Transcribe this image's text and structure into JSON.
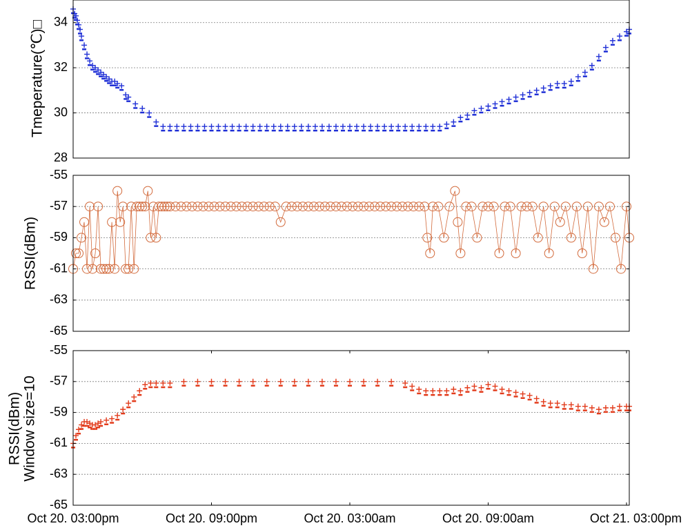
{
  "chart_data": [
    {
      "type": "scatter",
      "ylabel": "Tmeperature(℃)□",
      "ylim": [
        28,
        35
      ],
      "yticks": [
        "28",
        "30",
        "32",
        "34"
      ],
      "grid": true,
      "color": "#1f2fd6",
      "marker": "plus",
      "series": [
        {
          "x": [
            0,
            0.01,
            0.02,
            0.03,
            0.04,
            0.05,
            0.06,
            0.08,
            0.1,
            0.12,
            0.14,
            0.16,
            0.18,
            0.2,
            0.22,
            0.24,
            0.26,
            0.28,
            0.3,
            0.32,
            0.35,
            0.38,
            0.4,
            0.45,
            0.5,
            0.55,
            0.6,
            0.65,
            0.7,
            0.75,
            0.8,
            0.85,
            0.9,
            0.95,
            1.0,
            1.05,
            1.1,
            1.15,
            1.2,
            1.25,
            1.3,
            1.35,
            1.4,
            1.45,
            1.5,
            1.55,
            1.6,
            1.65,
            1.7,
            1.75,
            1.8,
            1.85,
            1.9,
            1.95,
            2.0,
            2.05,
            2.1,
            2.15,
            2.2,
            2.25,
            2.3,
            2.35,
            2.4,
            2.45,
            2.5,
            2.55,
            2.6,
            2.65,
            2.7,
            2.75,
            2.8,
            2.85,
            2.9,
            2.95,
            3.0,
            3.05,
            3.1,
            3.15,
            3.2,
            3.25,
            3.3,
            3.35,
            3.4,
            3.45,
            3.5,
            3.55,
            3.6,
            3.65,
            3.7,
            3.75,
            3.8,
            3.85,
            3.9,
            3.95,
            4.0,
            4.02
          ],
          "y": [
            34.6,
            34.4,
            34.3,
            34.1,
            33.9,
            33.7,
            33.4,
            33.0,
            32.6,
            32.3,
            32.1,
            32.0,
            31.9,
            31.8,
            31.7,
            31.6,
            31.5,
            31.4,
            31.4,
            31.3,
            31.2,
            30.8,
            30.7,
            30.4,
            30.2,
            30.0,
            29.6,
            29.4,
            29.4,
            29.4,
            29.4,
            29.4,
            29.4,
            29.4,
            29.4,
            29.4,
            29.4,
            29.4,
            29.4,
            29.4,
            29.4,
            29.4,
            29.4,
            29.4,
            29.4,
            29.4,
            29.4,
            29.4,
            29.4,
            29.4,
            29.4,
            29.4,
            29.4,
            29.4,
            29.4,
            29.4,
            29.4,
            29.4,
            29.4,
            29.4,
            29.4,
            29.4,
            29.4,
            29.4,
            29.4,
            29.4,
            29.4,
            29.4,
            29.5,
            29.6,
            29.8,
            29.9,
            30.1,
            30.2,
            30.3,
            30.4,
            30.5,
            30.6,
            30.7,
            30.8,
            30.9,
            31.0,
            31.1,
            31.2,
            31.3,
            31.3,
            31.4,
            31.6,
            31.8,
            32.1,
            32.5,
            32.9,
            33.2,
            33.4,
            33.6,
            33.7
          ]
        }
      ]
    },
    {
      "type": "line",
      "ylabel": "RSSI(dBm)",
      "ylim": [
        -65,
        -55
      ],
      "yticks": [
        "-65",
        "-63",
        "-61",
        "-59",
        "-57",
        "-55"
      ],
      "grid": true,
      "color": "#d2693a",
      "marker": "circle",
      "series": [
        {
          "x": [
            0.0,
            0.02,
            0.04,
            0.06,
            0.08,
            0.1,
            0.12,
            0.14,
            0.16,
            0.18,
            0.2,
            0.22,
            0.24,
            0.26,
            0.28,
            0.3,
            0.32,
            0.34,
            0.36,
            0.38,
            0.4,
            0.42,
            0.44,
            0.46,
            0.48,
            0.5,
            0.52,
            0.54,
            0.56,
            0.58,
            0.6,
            0.62,
            0.64,
            0.66,
            0.68,
            0.7,
            0.74,
            0.78,
            0.82,
            0.86,
            0.9,
            0.94,
            0.98,
            1.02,
            1.06,
            1.1,
            1.14,
            1.18,
            1.22,
            1.26,
            1.3,
            1.34,
            1.38,
            1.42,
            1.46,
            1.5,
            1.54,
            1.58,
            1.62,
            1.66,
            1.7,
            1.74,
            1.78,
            1.82,
            1.86,
            1.9,
            1.94,
            1.98,
            2.02,
            2.06,
            2.1,
            2.14,
            2.18,
            2.22,
            2.26,
            2.3,
            2.34,
            2.38,
            2.42,
            2.46,
            2.5,
            2.54,
            2.56,
            2.58,
            2.6,
            2.64,
            2.68,
            2.72,
            2.76,
            2.78,
            2.8,
            2.84,
            2.88,
            2.92,
            2.96,
            3.0,
            3.04,
            3.08,
            3.12,
            3.16,
            3.2,
            3.24,
            3.28,
            3.32,
            3.36,
            3.4,
            3.44,
            3.48,
            3.52,
            3.56,
            3.6,
            3.64,
            3.68,
            3.72,
            3.76,
            3.8,
            3.84,
            3.88,
            3.92,
            3.96,
            4.0,
            4.02
          ],
          "y": [
            -61,
            -60,
            -60,
            -59,
            -58,
            -61,
            -57,
            -61,
            -60,
            -57,
            -61,
            -61,
            -61,
            -61,
            -58,
            -61,
            -56,
            -58,
            -57,
            -61,
            -61,
            -57,
            -61,
            -57,
            -57,
            -57,
            -57,
            -56,
            -59,
            -57,
            -59,
            -57,
            -57,
            -57,
            -57,
            -57,
            -57,
            -57,
            -57,
            -57,
            -57,
            -57,
            -57,
            -57,
            -57,
            -57,
            -57,
            -57,
            -57,
            -57,
            -57,
            -57,
            -57,
            -57,
            -57,
            -58,
            -57,
            -57,
            -57,
            -57,
            -57,
            -57,
            -57,
            -57,
            -57,
            -57,
            -57,
            -57,
            -57,
            -57,
            -57,
            -57,
            -57,
            -57,
            -57,
            -57,
            -57,
            -57,
            -57,
            -57,
            -57,
            -57,
            -59,
            -60,
            -57,
            -57,
            -59,
            -57,
            -56,
            -58,
            -60,
            -57,
            -57,
            -59,
            -57,
            -57,
            -57,
            -60,
            -57,
            -57,
            -60,
            -57,
            -57,
            -57,
            -59,
            -57,
            -60,
            -57,
            -58,
            -57,
            -59,
            -57,
            -60,
            -57,
            -61,
            -57,
            -58,
            -57,
            -59,
            -61,
            -57,
            -59
          ]
        }
      ]
    },
    {
      "type": "scatter",
      "ylabel": "RSSI(dBm)",
      "ylabel2": "Window size=10",
      "ylim": [
        -65,
        -55
      ],
      "yticks": [
        "-65",
        "-63",
        "-61",
        "-59",
        "-57",
        "-55"
      ],
      "xticks": [
        "Oct 20. 03:00pm",
        "Oct 20. 09:00pm",
        "Oct 20. 03:00am",
        "Oct 20. 09:00am",
        "Oct 21. 03:00pm"
      ],
      "grid": true,
      "color": "#e23a1a",
      "marker": "plus",
      "series": [
        {
          "x": [
            0.0,
            0.02,
            0.04,
            0.06,
            0.08,
            0.1,
            0.12,
            0.14,
            0.16,
            0.18,
            0.2,
            0.24,
            0.28,
            0.32,
            0.36,
            0.4,
            0.44,
            0.48,
            0.52,
            0.56,
            0.6,
            0.65,
            0.7,
            0.8,
            0.9,
            1.0,
            1.1,
            1.2,
            1.3,
            1.4,
            1.5,
            1.6,
            1.7,
            1.8,
            1.9,
            2.0,
            2.1,
            2.2,
            2.3,
            2.4,
            2.45,
            2.5,
            2.55,
            2.6,
            2.65,
            2.7,
            2.75,
            2.8,
            2.85,
            2.9,
            2.95,
            3.0,
            3.05,
            3.1,
            3.15,
            3.2,
            3.25,
            3.3,
            3.35,
            3.4,
            3.45,
            3.5,
            3.55,
            3.6,
            3.65,
            3.7,
            3.75,
            3.8,
            3.85,
            3.9,
            3.95,
            4.0,
            4.02
          ],
          "y": [
            -61.0,
            -60.5,
            -60.1,
            -59.8,
            -59.6,
            -59.6,
            -59.7,
            -59.8,
            -59.8,
            -59.7,
            -59.6,
            -59.5,
            -59.4,
            -59.2,
            -58.8,
            -58.4,
            -58.0,
            -57.6,
            -57.2,
            -57.1,
            -57.1,
            -57.1,
            -57.1,
            -57.0,
            -57.0,
            -57.0,
            -57.0,
            -57.0,
            -57.0,
            -57.0,
            -57.0,
            -57.0,
            -57.0,
            -57.0,
            -57.0,
            -57.0,
            -57.0,
            -57.0,
            -57.0,
            -57.1,
            -57.3,
            -57.5,
            -57.6,
            -57.6,
            -57.6,
            -57.6,
            -57.5,
            -57.6,
            -57.4,
            -57.3,
            -57.4,
            -57.2,
            -57.3,
            -57.5,
            -57.6,
            -57.7,
            -57.8,
            -57.9,
            -58.1,
            -58.3,
            -58.4,
            -58.4,
            -58.5,
            -58.5,
            -58.6,
            -58.6,
            -58.7,
            -58.8,
            -58.7,
            -58.7,
            -58.6,
            -58.6,
            -58.6
          ]
        }
      ]
    }
  ]
}
